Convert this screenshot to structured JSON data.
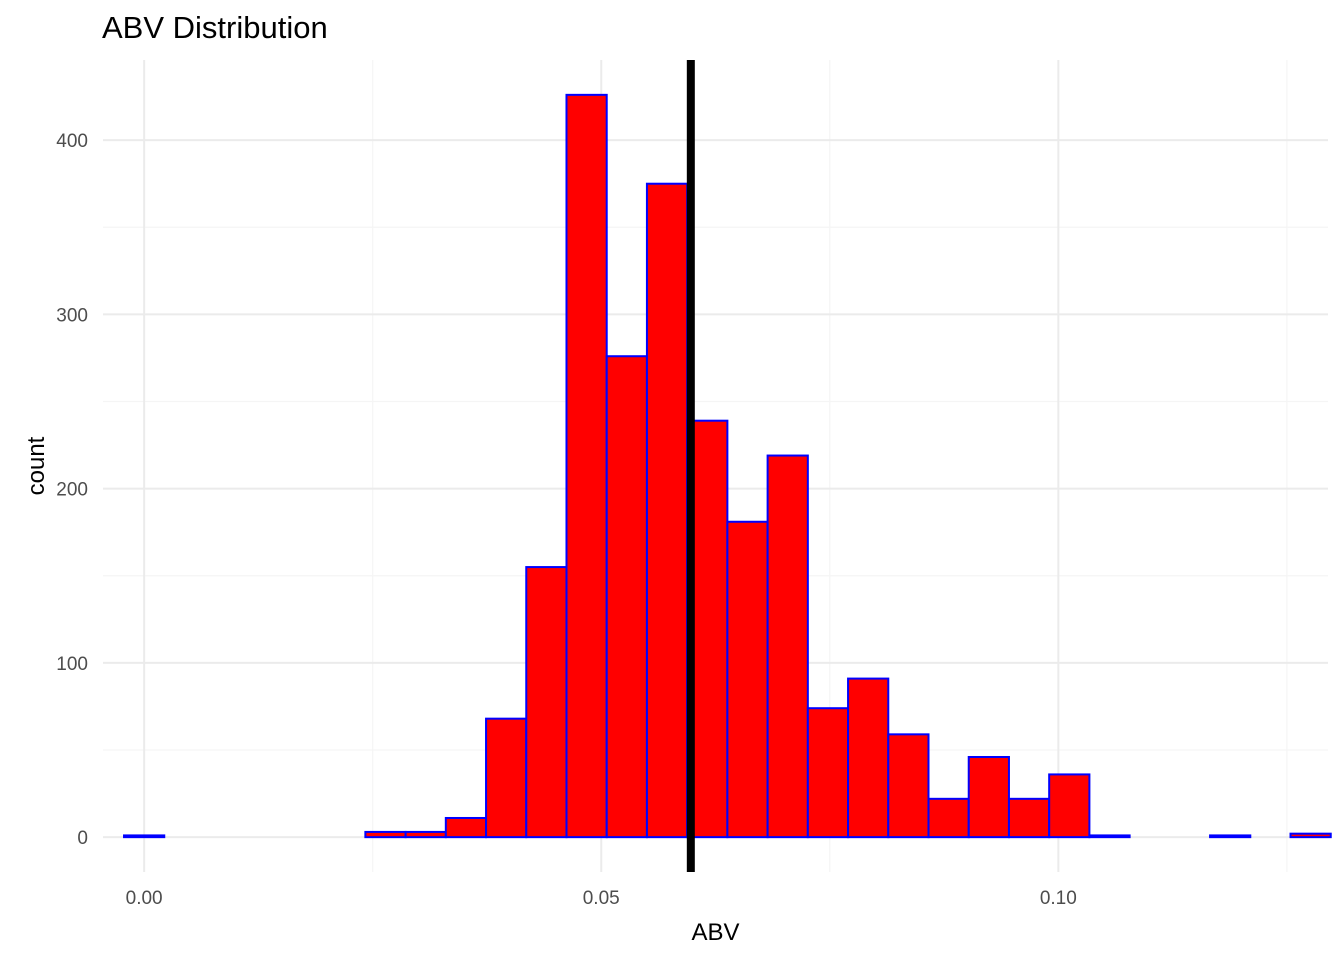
{
  "chart_data": {
    "type": "bar",
    "title": "ABV Distribution",
    "xlabel": "ABV",
    "ylabel": "count",
    "xlim": [
      -0.0045,
      0.1295
    ],
    "ylim": [
      -20,
      446
    ],
    "x_ticks": [
      0.0,
      0.05,
      0.1
    ],
    "x_tick_labels": [
      "0.00",
      "0.05",
      "0.10"
    ],
    "x_minor_ticks": [
      0.025,
      0.075,
      0.125
    ],
    "y_ticks": [
      0,
      100,
      200,
      300,
      400
    ],
    "y_tick_labels": [
      "0",
      "100",
      "200",
      "300",
      "400"
    ],
    "y_minor_ticks": [
      50,
      150,
      250,
      350
    ],
    "grid": true,
    "bin_width": 0.0044,
    "bins": [
      {
        "x": 0.0,
        "count": 1
      },
      {
        "x": 0.0044,
        "count": 0
      },
      {
        "x": 0.0088,
        "count": 0
      },
      {
        "x": 0.0132,
        "count": 0
      },
      {
        "x": 0.0176,
        "count": 0
      },
      {
        "x": 0.0264,
        "count": 3
      },
      {
        "x": 0.0308,
        "count": 3
      },
      {
        "x": 0.0352,
        "count": 11
      },
      {
        "x": 0.0396,
        "count": 68
      },
      {
        "x": 0.044,
        "count": 155
      },
      {
        "x": 0.0484,
        "count": 426
      },
      {
        "x": 0.0528,
        "count": 276
      },
      {
        "x": 0.0572,
        "count": 375
      },
      {
        "x": 0.0616,
        "count": 239
      },
      {
        "x": 0.066,
        "count": 181
      },
      {
        "x": 0.0704,
        "count": 219
      },
      {
        "x": 0.0748,
        "count": 74
      },
      {
        "x": 0.0792,
        "count": 91
      },
      {
        "x": 0.0836,
        "count": 59
      },
      {
        "x": 0.088,
        "count": 22
      },
      {
        "x": 0.0924,
        "count": 46
      },
      {
        "x": 0.0968,
        "count": 22
      },
      {
        "x": 0.1012,
        "count": 36
      },
      {
        "x": 0.1056,
        "count": 1
      },
      {
        "x": 0.11,
        "count": 0
      },
      {
        "x": 0.1144,
        "count": 0
      },
      {
        "x": 0.1188,
        "count": 1
      },
      {
        "x": 0.1232,
        "count": 0
      },
      {
        "x": 0.1276,
        "count": 2
      }
    ],
    "reference_line": {
      "x": 0.0598,
      "color": "#000000"
    },
    "colors": {
      "bar_fill": "#ff0000",
      "bar_stroke": "#0000ff",
      "grid_major": "#ebebeb",
      "grid_minor": "#f5f5f5"
    }
  }
}
